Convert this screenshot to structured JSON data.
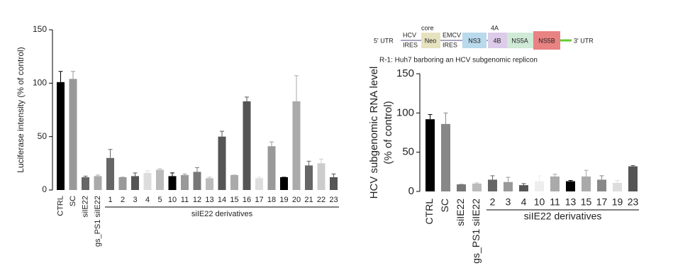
{
  "chart_data": [
    {
      "type": "bar",
      "ylabel": [
        "Luciferase intensity (% of control)"
      ],
      "group_label": "siIE22 derivatives",
      "categories": [
        "CTRL",
        "SC",
        "siIE22",
        "gs_PS1 siIE22",
        "1",
        "2",
        "3",
        "4",
        "5",
        "10",
        "11",
        "12",
        "13",
        "14",
        "15",
        "16",
        "17",
        "18",
        "19",
        "20",
        "21",
        "22",
        "23"
      ],
      "values": [
        101,
        104,
        12,
        13,
        30,
        12,
        13,
        16,
        19,
        13,
        14,
        17,
        11,
        50,
        14,
        83,
        11,
        41,
        12,
        83,
        23,
        25,
        12
      ],
      "errors": [
        10,
        7,
        1,
        1,
        8,
        0,
        3,
        2,
        1,
        3,
        1,
        4,
        1,
        5,
        0,
        4,
        1,
        4,
        0,
        24,
        4,
        4,
        3
      ],
      "colors": [
        "#000000",
        "#999999",
        "#666666",
        "#aaaaaa",
        "#666666",
        "#999999",
        "#555555",
        "#dddddd",
        "#bbbbbb",
        "#000000",
        "#999999",
        "#777777",
        "#bbbbbb",
        "#555555",
        "#aaaaaa",
        "#555555",
        "#dddddd",
        "#999999",
        "#000000",
        "#aaaaaa",
        "#666666",
        "#cccccc",
        "#555555"
      ],
      "ylim": [
        0,
        150
      ],
      "yticks": [
        0,
        50,
        100,
        150
      ]
    },
    {
      "type": "bar",
      "ylabel": [
        "HCV subgenomic RNA level",
        "(% of control)"
      ],
      "group_label": "siIE22 derivatives",
      "categories": [
        "CTRL",
        "SC",
        "siIE22",
        "gs_PS1 siIE22",
        "2",
        "3",
        "4",
        "10",
        "11",
        "13",
        "15",
        "17",
        "19",
        "23"
      ],
      "values": [
        92,
        86,
        9,
        10,
        15,
        12,
        8,
        13,
        19,
        13,
        19,
        15,
        11,
        32
      ],
      "errors": [
        6,
        14,
        0,
        1,
        5,
        6,
        2,
        7,
        3,
        1,
        8,
        5,
        3,
        1
      ],
      "colors": [
        "#000000",
        "#888888",
        "#777777",
        "#bbbbbb",
        "#666666",
        "#999999",
        "#555555",
        "#eeeeee",
        "#aaaaaa",
        "#000000",
        "#aaaaaa",
        "#888888",
        "#dddddd",
        "#555555"
      ],
      "ylim": [
        0,
        150
      ],
      "yticks": [
        0,
        50,
        100,
        150
      ]
    }
  ],
  "diagram": {
    "utr5": "5' UTR",
    "hcv": "HCV",
    "ires1": "IRES",
    "core": "core",
    "neo": "Neo",
    "emcv": "EMCV",
    "ires2": "IRES",
    "ns3": "NS3",
    "a4": "4A",
    "b4": "4B",
    "ns5a": "NS5A",
    "ns5b": "NS5B",
    "utr3": "3' UTR",
    "caption": "R-1: Huh7  barboring an HCV subgenomic replicon"
  }
}
